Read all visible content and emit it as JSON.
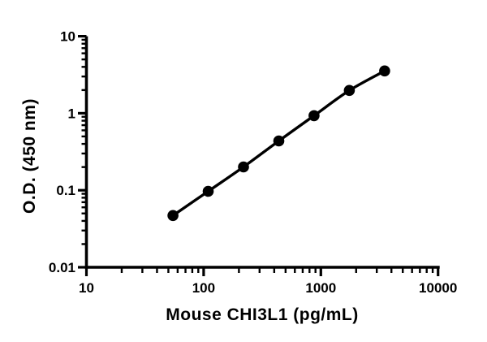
{
  "figure": {
    "background_color": "#ffffff",
    "axis_color": "#000000",
    "series_color": "#000000"
  },
  "chart_data": {
    "type": "line",
    "title": "",
    "xlabel": "Mouse CHI3L1 (pg/mL)",
    "ylabel": "O.D. (450 nm)",
    "x_scale": "log10",
    "y_scale": "log10",
    "xlim": [
      10,
      10000
    ],
    "ylim": [
      0.01,
      10
    ],
    "x_major_ticks": [
      10,
      100,
      1000,
      10000
    ],
    "x_tick_labels": [
      "10",
      "100",
      "1000",
      "10000"
    ],
    "y_major_ticks": [
      0.01,
      0.1,
      1,
      10
    ],
    "y_tick_labels": [
      "0.01",
      "0.1",
      "1",
      "10"
    ],
    "minor_ticks_per_decade": [
      2,
      3,
      4,
      5,
      6,
      7,
      8,
      9
    ],
    "grid": false,
    "legend": "none",
    "series": [
      {
        "name": "standard-curve",
        "marker": "filled-circle",
        "line": "smooth",
        "color": "#000000",
        "x": [
          54.69,
          109.38,
          218.75,
          437.5,
          875,
          1750,
          3500
        ],
        "y": [
          0.047,
          0.097,
          0.201,
          0.437,
          0.93,
          1.977,
          3.543
        ]
      }
    ]
  }
}
